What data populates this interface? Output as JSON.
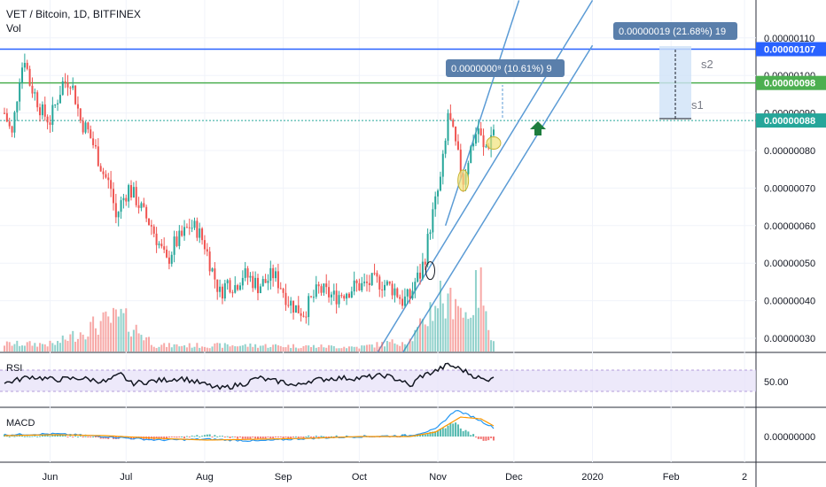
{
  "header": {
    "symbol_line": "VET / Bitcoin, 1D, BITFINEX",
    "volume_label": "Vol"
  },
  "colors": {
    "up": "#26a69a",
    "down": "#ef5350",
    "resistance_blue": "#2962ff",
    "resistance_green": "#4caf50",
    "support_teal": "#26a69a",
    "channel": "#5b9bd5",
    "rsi_line": "#131722",
    "macd_line": "#2196f3",
    "signal_line": "#ff9800",
    "highlight_yellow": "#f1e27a"
  },
  "price_axis": {
    "ticks": [
      "0.00000110",
      "0.00000100",
      "0.00000090",
      "0.00000080",
      "0.00000070",
      "0.00000060",
      "0.00000050",
      "0.00000040",
      "0.00000030"
    ],
    "tags": [
      {
        "text": "0.00000107",
        "value": 1.07,
        "color": "#2962ff"
      },
      {
        "text": "0.00000098",
        "value": 0.98,
        "color": "#4caf50"
      },
      {
        "text": "0.00000088",
        "value": 0.88,
        "color": "#26a69a"
      }
    ]
  },
  "time_axis": {
    "labels": [
      {
        "text": "Jun",
        "day": 18
      },
      {
        "text": "Jul",
        "day": 48
      },
      {
        "text": "Aug",
        "day": 79
      },
      {
        "text": "Sep",
        "day": 110
      },
      {
        "text": "Oct",
        "day": 140
      },
      {
        "text": "Nov",
        "day": 171
      },
      {
        "text": "Dec",
        "day": 201
      },
      {
        "text": "2020",
        "day": 232
      },
      {
        "text": "Feb",
        "day": 263
      },
      {
        "text": "2",
        "day": 292
      }
    ]
  },
  "rsi": {
    "label": "RSI",
    "tick": "50.00",
    "band_upper": 70,
    "band_lower": 30
  },
  "macd": {
    "label": "MACD",
    "tick": "0.00000000"
  },
  "annotations": {
    "measure1_text": "0.0000000⁹ (10.61%) 9",
    "measure2_text": "0.00000019 (21.68%) 19",
    "s1": "s1",
    "s2": "s2"
  },
  "chart_data": {
    "type": "candlestick",
    "title": "VET / Bitcoin, 1D, BITFINEX",
    "x_unit": "days since mid-May",
    "y_unit": "price (x1e-6 BTC)",
    "ylim": [
      0.26,
      1.2
    ],
    "horizontal_levels": [
      1.07,
      0.98,
      0.88
    ],
    "close_path": [
      [
        0,
        0.9
      ],
      [
        3,
        0.84
      ],
      [
        6,
        1.0
      ],
      [
        8,
        1.05
      ],
      [
        10,
        0.98
      ],
      [
        12,
        0.95
      ],
      [
        15,
        0.9
      ],
      [
        18,
        0.88
      ],
      [
        20,
        0.92
      ],
      [
        23,
        0.98
      ],
      [
        26,
        0.99
      ],
      [
        28,
        0.94
      ],
      [
        30,
        0.88
      ],
      [
        33,
        0.85
      ],
      [
        36,
        0.8
      ],
      [
        39,
        0.74
      ],
      [
        42,
        0.7
      ],
      [
        44,
        0.62
      ],
      [
        46,
        0.66
      ],
      [
        49,
        0.7
      ],
      [
        52,
        0.67
      ],
      [
        55,
        0.63
      ],
      [
        58,
        0.6
      ],
      [
        61,
        0.55
      ],
      [
        64,
        0.5
      ],
      [
        67,
        0.55
      ],
      [
        70,
        0.57
      ],
      [
        73,
        0.6
      ],
      [
        76,
        0.59
      ],
      [
        79,
        0.55
      ],
      [
        82,
        0.48
      ],
      [
        85,
        0.42
      ],
      [
        88,
        0.45
      ],
      [
        91,
        0.44
      ],
      [
        94,
        0.47
      ],
      [
        97,
        0.46
      ],
      [
        100,
        0.44
      ],
      [
        103,
        0.45
      ],
      [
        106,
        0.47
      ],
      [
        109,
        0.44
      ],
      [
        112,
        0.4
      ],
      [
        115,
        0.38
      ],
      [
        118,
        0.37
      ],
      [
        121,
        0.4
      ],
      [
        124,
        0.43
      ],
      [
        127,
        0.42
      ],
      [
        130,
        0.41
      ],
      [
        133,
        0.42
      ],
      [
        136,
        0.43
      ],
      [
        139,
        0.44
      ],
      [
        142,
        0.44
      ],
      [
        145,
        0.45
      ],
      [
        148,
        0.45
      ],
      [
        151,
        0.44
      ],
      [
        154,
        0.43
      ],
      [
        157,
        0.4
      ],
      [
        160,
        0.41
      ],
      [
        162,
        0.45
      ],
      [
        164,
        0.47
      ],
      [
        166,
        0.52
      ],
      [
        168,
        0.6
      ],
      [
        170,
        0.66
      ],
      [
        172,
        0.72
      ],
      [
        174,
        0.82
      ],
      [
        175,
        0.9
      ],
      [
        177,
        0.84
      ],
      [
        179,
        0.78
      ],
      [
        181,
        0.72
      ],
      [
        183,
        0.78
      ],
      [
        185,
        0.83
      ],
      [
        187,
        0.86
      ],
      [
        189,
        0.8
      ],
      [
        191,
        0.82
      ],
      [
        193,
        0.86
      ]
    ],
    "volume": [
      [
        0,
        0.1
      ],
      [
        20,
        0.1
      ],
      [
        36,
        0.35
      ],
      [
        46,
        0.45
      ],
      [
        60,
        0.08
      ],
      [
        100,
        0.08
      ],
      [
        140,
        0.06
      ],
      [
        160,
        0.15
      ],
      [
        165,
        0.35
      ],
      [
        168,
        0.55
      ],
      [
        172,
        0.75
      ],
      [
        175,
        0.55
      ],
      [
        178,
        0.85
      ],
      [
        181,
        0.45
      ],
      [
        184,
        0.6
      ],
      [
        186,
        0.75
      ],
      [
        188,
        1.0
      ],
      [
        190,
        0.4
      ],
      [
        193,
        0.2
      ]
    ],
    "rsi_path": [
      [
        0,
        45
      ],
      [
        10,
        58
      ],
      [
        20,
        52
      ],
      [
        30,
        55
      ],
      [
        40,
        48
      ],
      [
        46,
        62
      ],
      [
        50,
        45
      ],
      [
        60,
        50
      ],
      [
        70,
        55
      ],
      [
        80,
        42
      ],
      [
        85,
        35
      ],
      [
        95,
        45
      ],
      [
        100,
        56
      ],
      [
        105,
        50
      ],
      [
        110,
        48
      ],
      [
        115,
        40
      ],
      [
        120,
        50
      ],
      [
        130,
        55
      ],
      [
        140,
        55
      ],
      [
        150,
        60
      ],
      [
        157,
        50
      ],
      [
        160,
        38
      ],
      [
        164,
        58
      ],
      [
        170,
        68
      ],
      [
        175,
        80
      ],
      [
        180,
        72
      ],
      [
        185,
        60
      ],
      [
        190,
        50
      ],
      [
        193,
        60
      ]
    ],
    "macd_path": [
      [
        0,
        0.02
      ],
      [
        20,
        0.03
      ],
      [
        40,
        0.0
      ],
      [
        60,
        -0.04
      ],
      [
        80,
        -0.03
      ],
      [
        100,
        -0.05
      ],
      [
        120,
        -0.02
      ],
      [
        140,
        0.0
      ],
      [
        160,
        0.01
      ],
      [
        170,
        0.08
      ],
      [
        178,
        0.3
      ],
      [
        185,
        0.22
      ],
      [
        193,
        0.1
      ]
    ],
    "signal_path": [
      [
        0,
        0.01
      ],
      [
        20,
        0.02
      ],
      [
        40,
        0.01
      ],
      [
        60,
        -0.02
      ],
      [
        80,
        -0.04
      ],
      [
        100,
        -0.03
      ],
      [
        120,
        -0.02
      ],
      [
        140,
        0.0
      ],
      [
        160,
        0.0
      ],
      [
        170,
        0.05
      ],
      [
        180,
        0.22
      ],
      [
        188,
        0.2
      ],
      [
        193,
        0.12
      ]
    ],
    "channel_lines": [
      [
        [
          147,
          0.26
        ],
        [
          232,
          1.2
        ]
      ],
      [
        [
          157,
          0.26
        ],
        [
          232,
          1.08
        ]
      ],
      [
        [
          174,
          0.6
        ],
        [
          203,
          1.2
        ]
      ]
    ]
  }
}
